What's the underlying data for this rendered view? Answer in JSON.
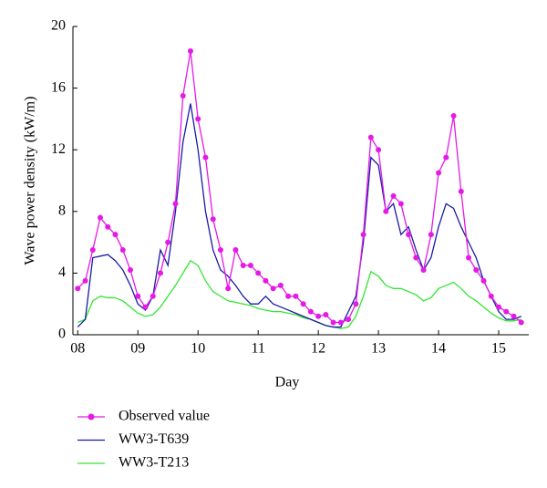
{
  "chart_data": {
    "type": "line",
    "xlabel": "Day",
    "ylabel": "Wave power density (kW/m)",
    "x": [
      8,
      8.125,
      8.25,
      8.375,
      8.5,
      8.625,
      8.75,
      8.875,
      9,
      9.125,
      9.25,
      9.375,
      9.5,
      9.625,
      9.75,
      9.875,
      10,
      10.125,
      10.25,
      10.375,
      10.5,
      10.625,
      10.75,
      10.875,
      11,
      11.125,
      11.25,
      11.375,
      11.5,
      11.625,
      11.75,
      11.875,
      12,
      12.125,
      12.25,
      12.375,
      12.5,
      12.625,
      12.75,
      12.875,
      13,
      13.125,
      13.25,
      13.375,
      13.5,
      13.625,
      13.75,
      13.875,
      14,
      14.125,
      14.25,
      14.375,
      14.5,
      14.625,
      14.75,
      14.875,
      15,
      15.125,
      15.25,
      15.375
    ],
    "series": [
      {
        "name": "Observed value",
        "color": "#e619e6",
        "markers": true,
        "values": [
          3.0,
          3.5,
          5.5,
          7.6,
          7.0,
          6.5,
          5.5,
          4.2,
          2.5,
          1.8,
          2.5,
          4.0,
          6.0,
          8.5,
          15.5,
          18.4,
          14.0,
          11.5,
          7.5,
          5.5,
          3.0,
          5.5,
          4.5,
          4.5,
          4.0,
          3.5,
          3.0,
          3.2,
          2.5,
          2.5,
          2.0,
          1.5,
          1.2,
          1.3,
          0.8,
          0.8,
          1.0,
          2.0,
          6.5,
          12.8,
          12.0,
          8.0,
          9.0,
          8.5,
          6.5,
          5.0,
          4.2,
          6.5,
          10.5,
          11.5,
          14.2,
          9.3,
          5.0,
          4.2,
          3.5,
          2.5,
          1.8,
          1.5,
          1.2,
          0.8
        ]
      },
      {
        "name": "WW3-T639",
        "color": "#1a1aa6",
        "markers": false,
        "values": [
          0.5,
          1.0,
          5.0,
          5.1,
          5.2,
          4.8,
          4.2,
          3.2,
          2.0,
          1.6,
          2.5,
          5.5,
          4.5,
          8.0,
          12.5,
          15.0,
          12.0,
          8.0,
          5.5,
          4.2,
          3.8,
          3.2,
          2.5,
          2.0,
          2.0,
          2.5,
          2.0,
          1.8,
          1.6,
          1.4,
          1.2,
          1.0,
          0.8,
          0.6,
          0.5,
          0.5,
          1.5,
          2.5,
          6.0,
          11.5,
          11.0,
          8.0,
          8.5,
          6.5,
          7.0,
          5.5,
          4.2,
          5.0,
          7.0,
          8.5,
          8.2,
          7.0,
          6.0,
          5.0,
          3.5,
          2.5,
          1.5,
          1.0,
          1.0,
          1.2
        ]
      },
      {
        "name": "WW3-T213",
        "color": "#33e633",
        "markers": false,
        "values": [
          0.8,
          1.0,
          2.2,
          2.5,
          2.4,
          2.4,
          2.2,
          1.8,
          1.4,
          1.2,
          1.3,
          1.8,
          2.5,
          3.2,
          4.0,
          4.8,
          4.5,
          3.5,
          2.8,
          2.5,
          2.2,
          2.1,
          2.0,
          1.9,
          1.7,
          1.6,
          1.5,
          1.5,
          1.4,
          1.3,
          1.1,
          1.0,
          0.8,
          0.6,
          0.5,
          0.4,
          0.5,
          1.2,
          2.5,
          4.1,
          3.8,
          3.2,
          3.0,
          3.0,
          2.8,
          2.6,
          2.2,
          2.4,
          3.0,
          3.2,
          3.4,
          3.0,
          2.5,
          2.2,
          1.8,
          1.4,
          1.1,
          0.9,
          0.9,
          1.0
        ]
      }
    ],
    "xlim": [
      7.92,
      15.5
    ],
    "xticks": [
      {
        "value": 8,
        "label": "08"
      },
      {
        "value": 9,
        "label": "09"
      },
      10,
      11,
      12,
      13,
      14,
      15
    ],
    "ylim": [
      0,
      20
    ],
    "yticks": [
      0,
      4,
      8,
      12,
      16,
      20
    ],
    "grid": false,
    "legend": "bottom"
  }
}
